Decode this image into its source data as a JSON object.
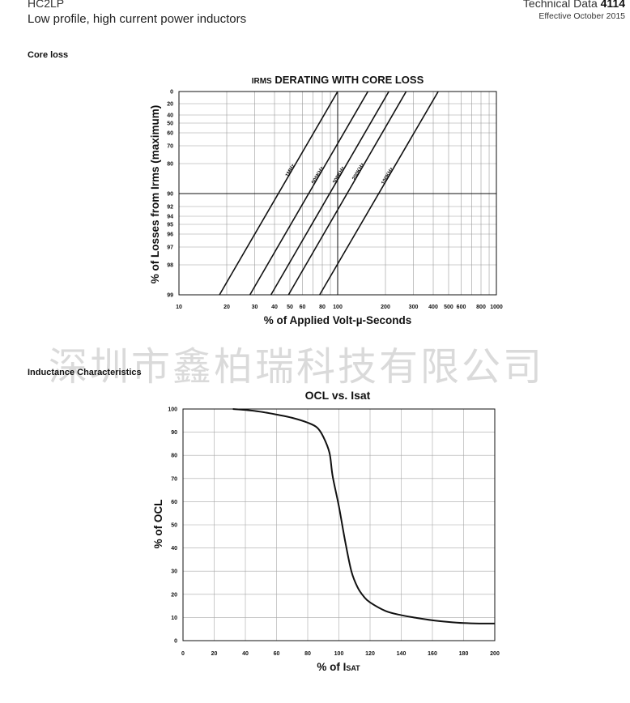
{
  "header": {
    "product": "HC2LP",
    "subtitle": "Low profile, high current power inductors",
    "doc_prefix": "Technical Data ",
    "doc_number": "4114",
    "effective": "Effective October 2015"
  },
  "sections": {
    "core_loss": "Core loss",
    "inductance": "Inductance Characteristics"
  },
  "watermark": "深圳市鑫柏瑞科技有限公司",
  "chart_data": [
    {
      "type": "line",
      "title_small": "IRMS",
      "title_rest": " DERATING WITH CORE LOSS",
      "xlabel": "% of Applied Volt-µ-Seconds",
      "ylabel": "% of Losses from Irms (maximum)",
      "x_scale": "log",
      "xlim": [
        10,
        1000
      ],
      "x_ticks": [
        10,
        20,
        30,
        40,
        50,
        60,
        80,
        100,
        200,
        300,
        400,
        500,
        600,
        800,
        1000
      ],
      "y_ticks": [
        0,
        20,
        40,
        50,
        60,
        70,
        80,
        90,
        92,
        94,
        95,
        96,
        97,
        98,
        99
      ],
      "grid": true,
      "series": [
        {
          "name": "1MHz",
          "x": [
            18,
            100
          ]
        },
        {
          "name": "500KHz",
          "x": [
            28,
            155
          ]
        },
        {
          "name": "300KHz",
          "x": [
            38,
            210
          ]
        },
        {
          "name": "200KHz",
          "x": [
            49,
            270
          ]
        },
        {
          "name": "100KHz",
          "x": [
            77,
            430
          ]
        }
      ]
    },
    {
      "type": "line",
      "title": "OCL vs. Isat",
      "xlabel_main": "% of I",
      "xlabel_sub": "SAT",
      "ylabel": "% of OCL",
      "xlim": [
        0,
        200
      ],
      "ylim": [
        0,
        100
      ],
      "x_ticks": [
        0,
        20,
        40,
        60,
        80,
        100,
        120,
        140,
        160,
        180,
        200
      ],
      "y_ticks": [
        0,
        10,
        20,
        30,
        40,
        50,
        60,
        70,
        80,
        90,
        100
      ],
      "grid": true,
      "series": [
        {
          "x": [
            32,
            40,
            50,
            60,
            70,
            80,
            86,
            90,
            94,
            96,
            100,
            104,
            108,
            112,
            116,
            120,
            130,
            140,
            150,
            160,
            170,
            180,
            190,
            200
          ],
          "y": [
            100,
            99.6,
            98.8,
            97.6,
            96.2,
            94.1,
            92,
            88,
            81,
            71,
            58,
            43,
            30,
            23,
            19,
            16.5,
            12.8,
            11,
            9.8,
            8.8,
            8.1,
            7.6,
            7.4,
            7.4
          ]
        }
      ]
    }
  ]
}
